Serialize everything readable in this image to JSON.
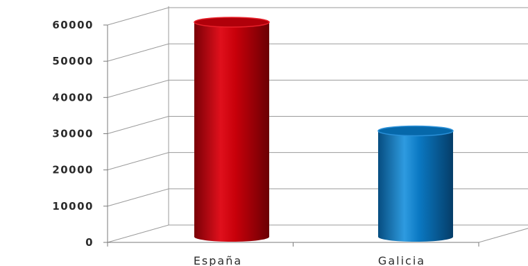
{
  "chart_data": {
    "type": "bar",
    "categories": [
      "España",
      "Galicia"
    ],
    "values": [
      60000,
      30000
    ],
    "ylim": [
      0,
      60000
    ],
    "yticks": [
      0,
      10000,
      20000,
      30000,
      40000,
      50000,
      60000
    ],
    "grid": true,
    "legend": "none",
    "colors": [
      "#c8000a",
      "#0a78c2"
    ]
  }
}
